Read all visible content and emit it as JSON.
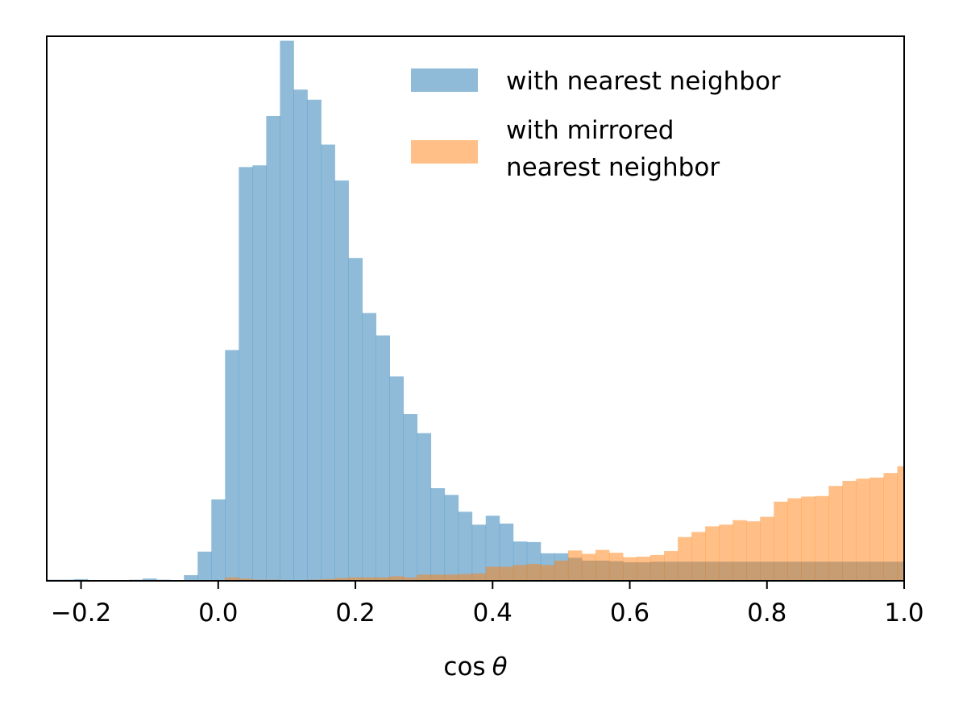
{
  "chart_data": {
    "type": "bar",
    "chart_subtype": "overlaid-histogram",
    "bin_width": 0.02,
    "xlabel_parts": [
      "cos",
      "θ"
    ],
    "ylabel": "",
    "xlim": [
      -0.25,
      1.0
    ],
    "ylim": [
      0,
      0.97
    ],
    "x_ticks": [
      -0.2,
      0.0,
      0.2,
      0.4,
      0.6,
      0.8,
      1.0
    ],
    "x_tick_labels": [
      "−0.2",
      "0.0",
      "0.2",
      "0.4",
      "0.6",
      "0.8",
      "1.0"
    ],
    "y_ticks_visible": false,
    "grid": false,
    "legend_position": "top-right",
    "series": [
      {
        "name": "with nearest neighbor",
        "color": "#1f77b4",
        "alpha": 0.5,
        "bin_edges_start": -0.25,
        "counts": [
          0.002,
          0.002,
          0.003,
          0.001,
          0.0,
          0.0,
          0.002,
          0.004,
          0.002,
          0.0,
          0.01,
          0.052,
          0.145,
          0.411,
          0.737,
          0.74,
          0.828,
          0.962,
          0.875,
          0.857,
          0.777,
          0.713,
          0.575,
          0.477,
          0.437,
          0.364,
          0.297,
          0.263,
          0.165,
          0.153,
          0.123,
          0.1,
          0.116,
          0.102,
          0.07,
          0.069,
          0.049,
          0.049,
          0.041,
          0.036,
          0.036,
          0.035,
          0.033,
          0.033,
          0.034,
          0.034,
          0.034,
          0.034,
          0.034,
          0.034,
          0.034,
          0.034,
          0.034,
          0.034,
          0.034,
          0.034,
          0.034,
          0.034,
          0.034,
          0.034,
          0.034,
          0.034,
          0.034
        ]
      },
      {
        "name": "with mirrored nearest neighbor",
        "legend_lines": [
          "with mirrored",
          "nearest neighbor"
        ],
        "color": "#ff7f0e",
        "alpha": 0.5,
        "bin_edges_start": -0.25,
        "counts": [
          0.0,
          0.0,
          0.0,
          0.0,
          0.0,
          0.0,
          0.0,
          0.0,
          0.0,
          0.0,
          0.0,
          0.0,
          0.0,
          0.006,
          0.004,
          0.002,
          0.002,
          0.0,
          0.001,
          0.002,
          0.003,
          0.005,
          0.006,
          0.006,
          0.006,
          0.008,
          0.006,
          0.011,
          0.011,
          0.011,
          0.012,
          0.013,
          0.025,
          0.025,
          0.028,
          0.03,
          0.028,
          0.036,
          0.054,
          0.048,
          0.055,
          0.05,
          0.042,
          0.043,
          0.046,
          0.053,
          0.078,
          0.087,
          0.097,
          0.1,
          0.108,
          0.106,
          0.114,
          0.141,
          0.147,
          0.15,
          0.151,
          0.169,
          0.178,
          0.182,
          0.184,
          0.192,
          0.204
        ]
      }
    ],
    "overlap_color": "#c39f79"
  }
}
